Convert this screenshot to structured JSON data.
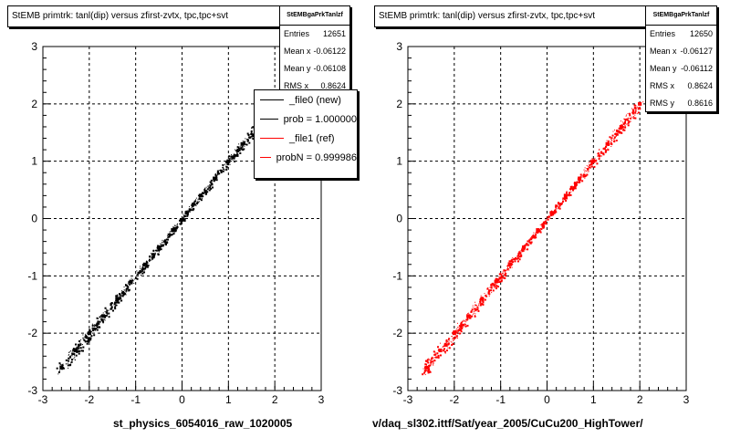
{
  "chart_data": [
    {
      "type": "scatter",
      "title": "StEMB primtrk: tanl(dip) versus zfirst-zvtx, tpc,tpc+svt",
      "xlabel": "st_physics_6054016_raw_1020005",
      "ylabel": "",
      "xlim": [
        -3,
        3
      ],
      "ylim": [
        -3,
        3
      ],
      "x_ticks": [
        "-3",
        "-2",
        "-1",
        "0",
        "1",
        "2",
        "3"
      ],
      "y_ticks": [
        "-3",
        "-2",
        "-1",
        "0",
        "1",
        "2",
        "3"
      ],
      "grid": true,
      "series": [
        {
          "color": "#000000",
          "x": [
            -2.6,
            -2.3,
            -2.0,
            -1.7,
            -1.4,
            -1.1,
            -0.8,
            -0.5,
            -0.2,
            0.1,
            0.4,
            0.7,
            1.0,
            1.3,
            1.6,
            2.0
          ],
          "y": [
            -2.6,
            -2.3,
            -2.0,
            -1.7,
            -1.4,
            -1.1,
            -0.8,
            -0.5,
            -0.2,
            0.1,
            0.4,
            0.7,
            1.0,
            1.3,
            1.6,
            2.0
          ]
        }
      ],
      "stats": {
        "name": "StEMBgaPrkTanlzf",
        "rows": [
          {
            "label": "Entries",
            "value": "12651"
          },
          {
            "label": "Mean x",
            "value": "-0.06122"
          },
          {
            "label": "Mean y",
            "value": "-0.06108"
          },
          {
            "label": "RMS x",
            "value": "0.8624"
          }
        ]
      },
      "legend": [
        {
          "label": "_file0 (new)",
          "color": "#000000"
        },
        {
          "label": "prob = 1.000000",
          "color": "#000000"
        },
        {
          "label": "_file1 (ref)",
          "color": "#ff0000"
        },
        {
          "label": "probN = 0.999986",
          "color": "#ff0000"
        }
      ]
    },
    {
      "type": "scatter",
      "title": "StEMB primtrk: tanl(dip) versus zfirst-zvtx, tpc,tpc+svt",
      "xlabel": "v/daq_sl302.ittf/Sat/year_2005/CuCu200_HighTower/",
      "ylabel": "",
      "xlim": [
        -3,
        3
      ],
      "ylim": [
        -3,
        3
      ],
      "x_ticks": [
        "-3",
        "-2",
        "-1",
        "0",
        "1",
        "2",
        "3"
      ],
      "y_ticks": [
        "-3",
        "-2",
        "-1",
        "0",
        "1",
        "2",
        "3"
      ],
      "grid": true,
      "series": [
        {
          "color": "#ff0000",
          "x": [
            -2.6,
            -2.3,
            -2.0,
            -1.7,
            -1.4,
            -1.1,
            -0.8,
            -0.5,
            -0.2,
            0.1,
            0.4,
            0.7,
            1.0,
            1.3,
            1.6,
            2.0
          ],
          "y": [
            -2.6,
            -2.3,
            -2.0,
            -1.7,
            -1.4,
            -1.1,
            -0.8,
            -0.5,
            -0.2,
            0.1,
            0.4,
            0.7,
            1.0,
            1.3,
            1.6,
            2.0
          ]
        }
      ],
      "stats": {
        "name": "StEMBgaPrkTanlzf",
        "rows": [
          {
            "label": "Entries",
            "value": "12650"
          },
          {
            "label": "Mean x",
            "value": "-0.06127"
          },
          {
            "label": "Mean y",
            "value": "-0.06112"
          },
          {
            "label": "RMS x",
            "value": "0.8624"
          },
          {
            "label": "RMS y",
            "value": "0.8616"
          }
        ]
      }
    }
  ]
}
